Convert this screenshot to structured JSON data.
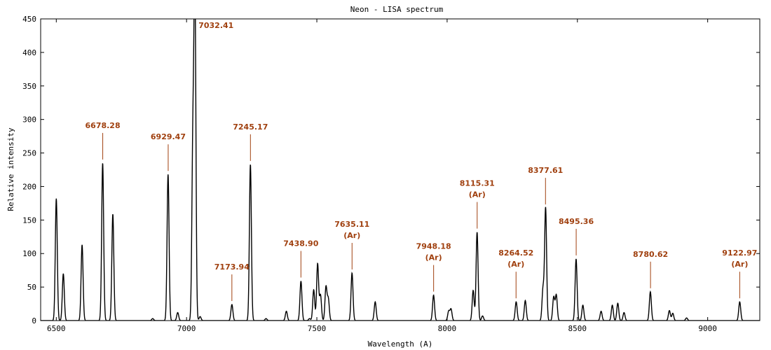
{
  "chart_data": {
    "type": "line",
    "title": "Neon - LISA spectrum",
    "xlabel": "Wavelength (A)",
    "ylabel": "Relative intensity",
    "xlim": [
      6440,
      9200
    ],
    "ylim": [
      0,
      450
    ],
    "xticks": [
      6500,
      7000,
      7500,
      8000,
      8500,
      9000
    ],
    "yticks": [
      0,
      50,
      100,
      150,
      200,
      250,
      300,
      350,
      400,
      450
    ],
    "grid": false,
    "series_color": "#000000",
    "annotation_color": "#a0400f",
    "lines": [
      [
        6500,
        182
      ],
      [
        6527,
        70
      ],
      [
        6599,
        113
      ],
      [
        6678,
        235
      ],
      [
        6717,
        159
      ],
      [
        6870,
        3
      ],
      [
        6929,
        218
      ],
      [
        6966,
        12
      ],
      [
        7024,
        250
      ],
      [
        7032,
        500
      ],
      [
        7052,
        6
      ],
      [
        7174,
        24
      ],
      [
        7245,
        233
      ],
      [
        7305,
        3
      ],
      [
        7383,
        14
      ],
      [
        7439,
        59
      ],
      [
        7472,
        3
      ],
      [
        7488,
        46
      ],
      [
        7503,
        85
      ],
      [
        7514,
        38
      ],
      [
        7535,
        50
      ],
      [
        7544,
        32
      ],
      [
        7635,
        71
      ],
      [
        7724,
        28
      ],
      [
        7948,
        38
      ],
      [
        8006,
        14
      ],
      [
        8015,
        17
      ],
      [
        8100,
        45
      ],
      [
        8115,
        132
      ],
      [
        8136,
        7
      ],
      [
        8265,
        28
      ],
      [
        8300,
        30
      ],
      [
        8368,
        47
      ],
      [
        8378,
        168
      ],
      [
        8409,
        35
      ],
      [
        8419,
        38
      ],
      [
        8495,
        92
      ],
      [
        8521,
        23
      ],
      [
        8591,
        14
      ],
      [
        8634,
        23
      ],
      [
        8655,
        26
      ],
      [
        8679,
        12
      ],
      [
        8780,
        43
      ],
      [
        8853,
        15
      ],
      [
        8866,
        11
      ],
      [
        8919,
        4
      ],
      [
        9123,
        28
      ]
    ],
    "annotations": [
      {
        "line1": "7032.41",
        "line2": "",
        "x": 7032.41,
        "y": 450
      },
      {
        "line1": "6678.28",
        "line2": "",
        "x": 6678.28,
        "y": 235
      },
      {
        "line1": "6929.47",
        "line2": "",
        "x": 6929.47,
        "y": 218
      },
      {
        "line1": "7245.17",
        "line2": "",
        "x": 7245.17,
        "y": 233
      },
      {
        "line1": "7173.94",
        "line2": "",
        "x": 7173.94,
        "y": 24
      },
      {
        "line1": "7438.90",
        "line2": "",
        "x": 7438.9,
        "y": 59
      },
      {
        "line1": "7635.11",
        "line2": "(Ar)",
        "x": 7635.11,
        "y": 71
      },
      {
        "line1": "7948.18",
        "line2": "(Ar)",
        "x": 7948.18,
        "y": 38
      },
      {
        "line1": "8115.31",
        "line2": "(Ar)",
        "x": 8115.31,
        "y": 132
      },
      {
        "line1": "8264.52",
        "line2": "(Ar)",
        "x": 8264.52,
        "y": 28
      },
      {
        "line1": "8377.61",
        "line2": "",
        "x": 8377.61,
        "y": 168
      },
      {
        "line1": "8495.36",
        "line2": "",
        "x": 8495.36,
        "y": 92
      },
      {
        "line1": "8780.62",
        "line2": "",
        "x": 8780.62,
        "y": 43
      },
      {
        "line1": "9122.97",
        "line2": "(Ar)",
        "x": 9122.97,
        "y": 28
      }
    ]
  }
}
